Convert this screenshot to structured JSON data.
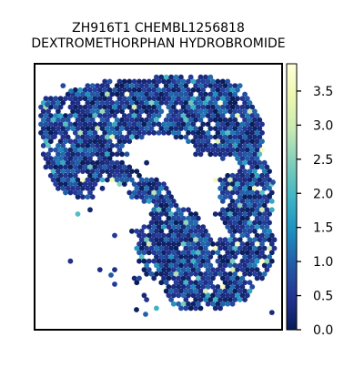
{
  "chart_data": {
    "type": "heatmap",
    "title_line1": "ZH916T1 CHEMBL1256818",
    "title_line2": "DEXTROMETHORPHAN HYDROBROMIDE",
    "xlabel": "",
    "ylabel": "",
    "colorbar": {
      "colormap": "YlGnBu",
      "range": [
        0.0,
        3.9
      ],
      "ticks": [
        0.0,
        0.5,
        1.0,
        1.5,
        2.0,
        2.5,
        3.0,
        3.5
      ],
      "tick_labels": [
        "0.0",
        "0.5",
        "1.0",
        "1.5",
        "2.0",
        "2.5",
        "3.0",
        "3.5"
      ],
      "stops": [
        "#081d58",
        "#253494",
        "#225ea8",
        "#1d91c0",
        "#41b6c4",
        "#7fcdbb",
        "#c7e9b4",
        "#edf8b1",
        "#ffffd9"
      ]
    },
    "value_summary": {
      "typical": 0.6,
      "max_visible": 3.9
    }
  }
}
